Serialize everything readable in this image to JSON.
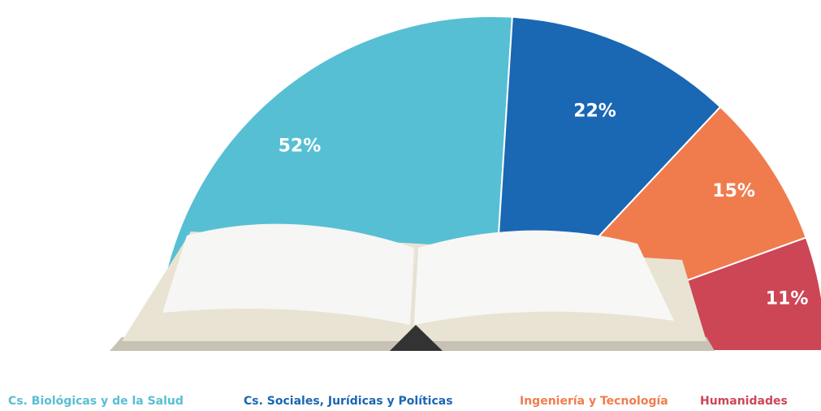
{
  "chart_data": {
    "type": "pie",
    "half": true,
    "categories": [
      "Cs. Biológicas y de la Salud",
      "Cs. Sociales, Jurídicas y Políticas",
      "Ingeniería y Tecnología",
      "Humanidades"
    ],
    "values": [
      52,
      22,
      15,
      11
    ],
    "value_labels": [
      "52%",
      "22%",
      "15%",
      "11%"
    ],
    "colors": [
      "#57bfd3",
      "#1a67b3",
      "#f07c4e",
      "#cc4656"
    ]
  }
}
